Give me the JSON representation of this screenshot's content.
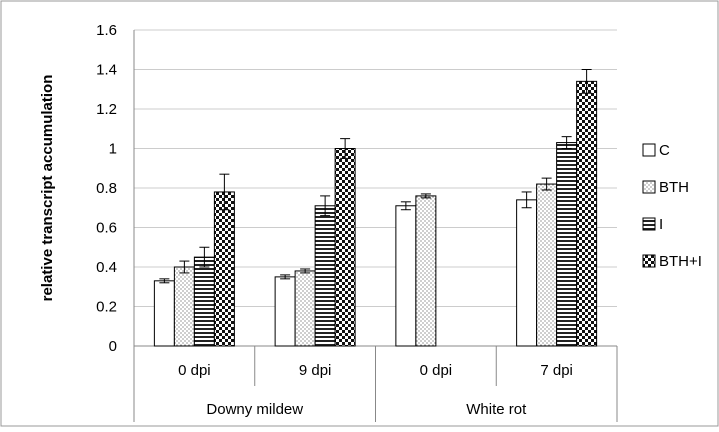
{
  "chart_data": {
    "type": "bar",
    "title": "",
    "ylabel": "relative transcript accumulation",
    "xlabel": "",
    "ylim": [
      0,
      1.6
    ],
    "yticks": [
      0,
      0.2,
      0.4,
      0.6,
      0.8,
      1,
      1.2,
      1.4,
      1.6
    ],
    "ytick_labels": [
      "0",
      "0.2",
      "0.4",
      "0.6",
      "0.8",
      "1",
      "1.2",
      "1.4",
      "1.6"
    ],
    "grid": true,
    "legend": "right",
    "groups": [
      {
        "label": "Downy mildew",
        "categories": [
          "0 dpi",
          "9 dpi"
        ]
      },
      {
        "label": "White rot",
        "categories": [
          "0 dpi",
          "7 dpi"
        ]
      }
    ],
    "categories": [
      "0 dpi",
      "9 dpi",
      "0 dpi",
      "7 dpi"
    ],
    "series": [
      {
        "name": "C",
        "pattern": "white",
        "values": [
          0.33,
          0.35,
          0.71,
          0.74
        ],
        "errors": [
          0.01,
          0.01,
          0.02,
          0.04
        ]
      },
      {
        "name": "BTH",
        "pattern": "dots",
        "values": [
          0.4,
          0.38,
          0.76,
          0.82
        ],
        "errors": [
          0.03,
          0.01,
          0.01,
          0.03
        ]
      },
      {
        "name": "I",
        "pattern": "horizontal-lines",
        "values": [
          0.45,
          0.71,
          null,
          1.03
        ],
        "errors": [
          0.05,
          0.05,
          null,
          0.03
        ]
      },
      {
        "name": "BTH+I",
        "pattern": "checker",
        "values": [
          0.78,
          1.0,
          null,
          1.34
        ],
        "errors": [
          0.09,
          0.05,
          null,
          0.06
        ]
      }
    ],
    "colors": {
      "bar_edge": "#000000",
      "grid": "#cccccc",
      "axis": "#888888"
    }
  }
}
